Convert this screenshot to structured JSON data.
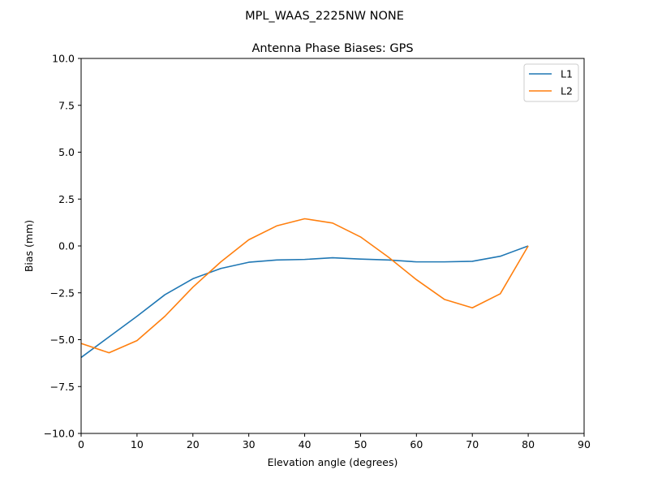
{
  "figure": {
    "suptitle": "MPL_WAAS_2225NW NONE"
  },
  "chart_data": {
    "type": "line",
    "title": "Antenna Phase Biases: GPS",
    "xlabel": "Elevation angle (degrees)",
    "ylabel": "Bias (mm)",
    "xlim": [
      0,
      90
    ],
    "ylim": [
      -10,
      10
    ],
    "xticks": [
      0,
      10,
      20,
      30,
      40,
      50,
      60,
      70,
      80,
      90
    ],
    "xtick_labels": [
      "0",
      "10",
      "20",
      "30",
      "40",
      "50",
      "60",
      "70",
      "80",
      "90"
    ],
    "yticks": [
      -10,
      -7.5,
      -5,
      -2.5,
      0,
      2.5,
      5,
      7.5,
      10
    ],
    "ytick_labels": [
      "−10.0",
      "−7.5",
      "−5.0",
      "−2.5",
      "0.0",
      "2.5",
      "5.0",
      "7.5",
      "10.0"
    ],
    "grid": false,
    "legend_position": "top-right",
    "x": [
      0,
      5,
      10,
      15,
      20,
      25,
      30,
      35,
      40,
      45,
      50,
      55,
      60,
      65,
      70,
      75,
      80
    ],
    "series": [
      {
        "name": "L1",
        "color": "#1f77b4",
        "values": [
          -5.95,
          -4.85,
          -3.75,
          -2.6,
          -1.75,
          -1.2,
          -0.87,
          -0.75,
          -0.72,
          -0.63,
          -0.7,
          -0.75,
          -0.85,
          -0.85,
          -0.82,
          -0.55,
          0.0
        ]
      },
      {
        "name": "L2",
        "color": "#ff7f0e",
        "values": [
          -5.2,
          -5.7,
          -5.05,
          -3.75,
          -2.2,
          -0.85,
          0.33,
          1.07,
          1.45,
          1.22,
          0.48,
          -0.6,
          -1.8,
          -2.85,
          -3.3,
          -2.55,
          0.0
        ]
      }
    ]
  }
}
